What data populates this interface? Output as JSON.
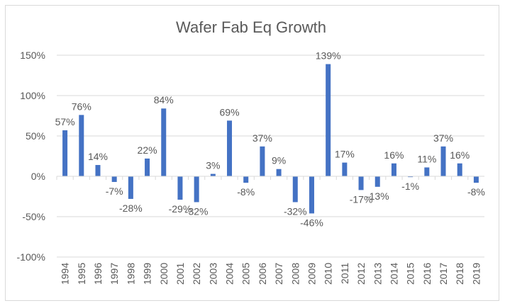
{
  "chart_data": {
    "type": "bar",
    "title": "Wafer Fab Eq Growth",
    "xlabel": "",
    "ylabel": "",
    "categories": [
      "1994",
      "1995",
      "1996",
      "1997",
      "1998",
      "1999",
      "2000",
      "2001",
      "2002",
      "2003",
      "2004",
      "2005",
      "2006",
      "2007",
      "2008",
      "2009",
      "2010",
      "2011",
      "2012",
      "2013",
      "2014",
      "2015",
      "2016",
      "2017",
      "2018",
      "2019"
    ],
    "values": [
      57,
      76,
      14,
      -7,
      -28,
      22,
      84,
      -29,
      -32,
      3,
      69,
      -8,
      37,
      9,
      -32,
      -46,
      139,
      17,
      -17,
      -13,
      16,
      -1,
      11,
      37,
      16,
      -8
    ],
    "data_labels": [
      "57%",
      "76%",
      "14%",
      "-7%",
      "-28%",
      "22%",
      "84%",
      "-29%",
      "-32%",
      "3%",
      "69%",
      "-8%",
      "37%",
      "9%",
      "-32%",
      "-46%",
      "139%",
      "17%",
      "-17%",
      "-13%",
      "16%",
      "-1%",
      "11%",
      "37%",
      "16%",
      "-8%"
    ],
    "ylim": [
      -100,
      150
    ],
    "yticks": [
      150,
      100,
      50,
      0,
      -50,
      -100
    ],
    "ytick_labels": [
      "150%",
      "100%",
      "50%",
      "0%",
      "-50%",
      "-100%"
    ],
    "grid": true,
    "legend": "none",
    "bar_color": "#4472c4"
  }
}
